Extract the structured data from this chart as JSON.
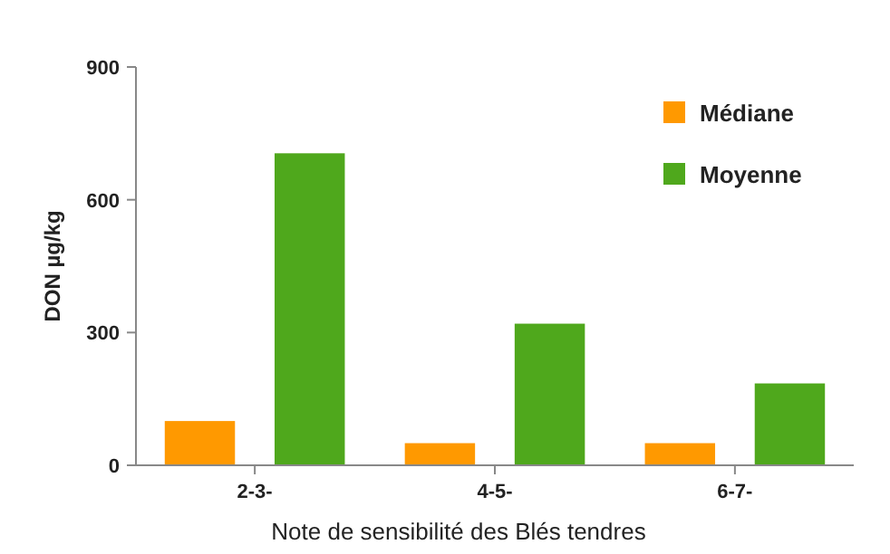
{
  "chart_data": {
    "type": "bar",
    "xlabel": "Note de sensibilité des Blés tendres",
    "ylabel": "DON µg/kg",
    "categories": [
      "2-3-",
      "4-5-",
      "6-7-"
    ],
    "series": [
      {
        "name": "Médiane",
        "color": "#ff9900",
        "values": [
          100,
          50,
          50
        ]
      },
      {
        "name": "Moyenne",
        "color": "#4fa81c",
        "values": [
          705,
          320,
          185
        ]
      }
    ],
    "ylim": [
      0,
      900
    ],
    "yticks": [
      0,
      300,
      600,
      900
    ],
    "grid": false,
    "legend": "top right"
  }
}
